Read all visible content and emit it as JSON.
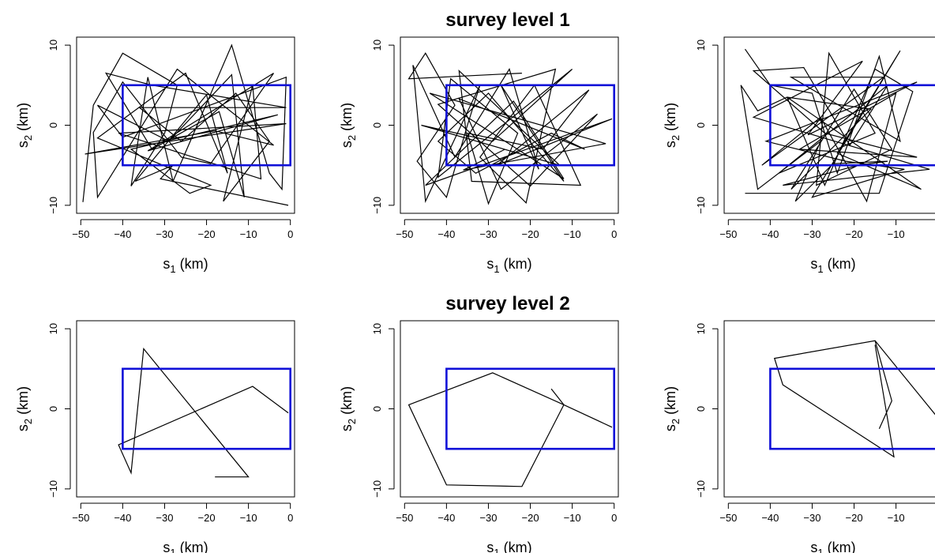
{
  "figure": {
    "titles": [
      "survey level 1",
      "survey level 2"
    ]
  },
  "axes_text": {
    "xlabel_main": "s",
    "xlabel_sub": "1",
    "xlabel_unit": " (km)",
    "ylabel_main": "s",
    "ylabel_sub": "2",
    "ylabel_unit": " (km)",
    "xticks": [
      "-50",
      "-40",
      "-30",
      "-20",
      "-10",
      "0"
    ],
    "yticks": [
      "-10",
      "0",
      "10"
    ]
  },
  "colors": {
    "region": "#1010d8",
    "path": "#000000"
  },
  "chart_data": [
    {
      "type": "line",
      "panel": "level1-col1",
      "xlim": [
        -51,
        1
      ],
      "ylim": [
        -11,
        11
      ],
      "grid": false,
      "region": {
        "x": [
          -40,
          0
        ],
        "y": [
          -5,
          5
        ]
      },
      "series": [
        {
          "values": [
            [
              -49.5,
              -9.6
            ],
            [
              -47,
              2.5
            ],
            [
              -40,
              9
            ],
            [
              -27,
              5
            ],
            [
              -30,
              -1
            ],
            [
              -38,
              -7.6
            ],
            [
              -34,
              6
            ],
            [
              -28,
              -7
            ],
            [
              -14,
              10
            ],
            [
              -5,
              -6
            ],
            [
              -2,
              -8
            ],
            [
              -1,
              6
            ],
            [
              -40,
              -1.5
            ],
            [
              -46,
              2.5
            ],
            [
              -29,
              -2
            ],
            [
              -14,
              6.3
            ],
            [
              -11,
              -9
            ],
            [
              -17,
              1.7
            ],
            [
              -33,
              -3
            ],
            [
              -44,
              6.5
            ],
            [
              -33,
              5
            ],
            [
              -1,
              2.2
            ],
            [
              -36,
              2.2
            ],
            [
              -26,
              -2
            ],
            [
              -13,
              4
            ],
            [
              -5,
              -2
            ],
            [
              -16,
              -9.5
            ],
            [
              -9,
              5
            ],
            [
              -7,
              -6.7
            ],
            [
              -41,
              -1
            ],
            [
              -1,
              0.2
            ],
            [
              -49,
              -3.6
            ],
            [
              -18,
              -0.7
            ],
            [
              -4,
              -2.5
            ],
            [
              -27,
              7
            ],
            [
              -46,
              -9
            ],
            [
              -47,
              -0.9
            ],
            [
              -40,
              5.4
            ],
            [
              -26,
              -4
            ],
            [
              -19,
              -4.8
            ],
            [
              -4,
              6.5
            ],
            [
              -34,
              -3.2
            ],
            [
              -3,
              1.3
            ],
            [
              -38,
              -3
            ],
            [
              -24,
              -8.5
            ],
            [
              -19,
              -7.5
            ],
            [
              -46,
              -1.6
            ],
            [
              -25,
              6.5
            ],
            [
              -15,
              -6
            ],
            [
              -20,
              3.8
            ],
            [
              -37,
              -7
            ],
            [
              -28,
              -5
            ],
            [
              -31,
              -6.7
            ],
            [
              -0.5,
              -10
            ]
          ]
        }
      ]
    },
    {
      "type": "line",
      "panel": "level1-col2",
      "xlim": [
        -51,
        1
      ],
      "ylim": [
        -11,
        11
      ],
      "grid": false,
      "region": {
        "x": [
          -40,
          0
        ],
        "y": [
          -5,
          5
        ]
      },
      "series": [
        {
          "values": [
            [
              -22,
              6.5
            ],
            [
              -49,
              5.8
            ],
            [
              -45,
              9
            ],
            [
              -38,
              2.5
            ],
            [
              -47,
              -4.5
            ],
            [
              -40,
              -9
            ],
            [
              -35,
              0
            ],
            [
              -32,
              5
            ],
            [
              -45,
              -9.5
            ],
            [
              -48,
              7.5
            ],
            [
              -38,
              -4
            ],
            [
              -25,
              7
            ],
            [
              -18,
              -5.5
            ],
            [
              -27,
              5
            ],
            [
              -12,
              -7
            ],
            [
              -30,
              4
            ],
            [
              -42,
              -2
            ],
            [
              -33,
              -6
            ],
            [
              -15,
              -1
            ],
            [
              -7,
              -3
            ],
            [
              -37,
              3.3
            ],
            [
              -27,
              -8
            ],
            [
              -4,
              1.4
            ],
            [
              -20,
              -7.6
            ],
            [
              -42,
              2.6
            ],
            [
              -14,
              7
            ],
            [
              -21,
              -9.7
            ],
            [
              -32,
              -4
            ],
            [
              -19,
              5
            ],
            [
              -8,
              -7.5
            ],
            [
              -34,
              -7
            ],
            [
              -37,
              6.8
            ],
            [
              -13,
              -5
            ],
            [
              -46,
              0
            ],
            [
              -29,
              -2
            ],
            [
              -10,
              7
            ],
            [
              -42,
              -6.5
            ],
            [
              -39,
              5.8
            ],
            [
              -23,
              -1
            ],
            [
              -30,
              -9.8
            ],
            [
              -35,
              -1
            ],
            [
              -17,
              -3
            ],
            [
              -6,
              4.4
            ],
            [
              -28,
              -5
            ],
            [
              -0.5,
              0.8
            ],
            [
              -45,
              -7.5
            ],
            [
              -24,
              3
            ],
            [
              -12,
              -6.7
            ],
            [
              -44,
              4
            ],
            [
              -2,
              -2.3
            ],
            [
              -36,
              -5.6
            ],
            [
              -26,
              -3
            ]
          ]
        }
      ]
    },
    {
      "type": "line",
      "panel": "level1-col3",
      "xlim": [
        -51,
        1
      ],
      "ylim": [
        -11,
        11
      ],
      "grid": false,
      "region": {
        "x": [
          -40,
          0
        ],
        "y": [
          -5,
          5
        ]
      },
      "series": [
        {
          "values": [
            [
              -46,
              9.5
            ],
            [
              -40,
              5
            ],
            [
              -30,
              4
            ],
            [
              -24,
              -6
            ],
            [
              -14,
              8.6
            ],
            [
              -9,
              -2
            ],
            [
              -35,
              6
            ],
            [
              -13,
              6
            ],
            [
              -42,
              -5
            ],
            [
              -28,
              1
            ],
            [
              -17,
              -9.5
            ],
            [
              -10,
              4
            ],
            [
              -33,
              -3
            ],
            [
              -5,
              -4
            ],
            [
              -27,
              -1
            ],
            [
              -44,
              6.8
            ],
            [
              -32,
              7.2
            ],
            [
              -21,
              -2.5
            ],
            [
              -12,
              5
            ],
            [
              -38,
              -6
            ],
            [
              -15,
              -1
            ],
            [
              -26,
              9
            ],
            [
              -29,
              -7.5
            ],
            [
              -11,
              -3
            ],
            [
              -20,
              4.5
            ],
            [
              -35,
              -8
            ],
            [
              -16,
              2
            ],
            [
              -36,
              3.5
            ],
            [
              -4,
              -8
            ],
            [
              -24,
              -3.5
            ],
            [
              -9,
              9.3
            ],
            [
              -30,
              -9
            ],
            [
              -8,
              -5.5
            ],
            [
              -22,
              -4.5
            ],
            [
              -41,
              -2
            ],
            [
              -5,
              5.4
            ],
            [
              -31,
              -1.2
            ],
            [
              -18,
              8
            ],
            [
              -44,
              1
            ],
            [
              -2,
              -5.5
            ],
            [
              -37,
              -7.5
            ],
            [
              -19,
              -5
            ],
            [
              -12,
              -4.5
            ],
            [
              -25,
              -4.8
            ],
            [
              -34,
              -9.5
            ],
            [
              -28,
              -2
            ],
            [
              -43,
              -8
            ],
            [
              -47,
              5
            ],
            [
              -43,
              1.8
            ],
            [
              -36,
              3.5
            ],
            [
              -27,
              -7.5
            ],
            [
              -15,
              7
            ],
            [
              -6,
              4.2
            ],
            [
              -14,
              -8.5
            ],
            [
              -46,
              -8.5
            ]
          ]
        }
      ]
    },
    {
      "type": "line",
      "panel": "level2-col1",
      "xlim": [
        -51,
        1
      ],
      "ylim": [
        -11,
        11
      ],
      "grid": false,
      "region": {
        "x": [
          -40,
          0
        ],
        "y": [
          -5,
          5
        ]
      },
      "series": [
        {
          "values": [
            [
              -18,
              -8.5
            ],
            [
              -10,
              -8.5
            ],
            [
              -35,
              7.5
            ],
            [
              -38,
              -8
            ],
            [
              -41,
              -4.5
            ],
            [
              -9,
              2.8
            ],
            [
              -0.5,
              -0.5
            ]
          ]
        }
      ]
    },
    {
      "type": "line",
      "panel": "level2-col2",
      "xlim": [
        -51,
        1
      ],
      "ylim": [
        -11,
        11
      ],
      "grid": false,
      "region": {
        "x": [
          -40,
          0
        ],
        "y": [
          -5,
          5
        ]
      },
      "series": [
        {
          "values": [
            [
              -15,
              2.5
            ],
            [
              -12,
              0.5
            ],
            [
              -29,
              4.5
            ],
            [
              -49,
              0.5
            ],
            [
              -40,
              -9.5
            ],
            [
              -22,
              -9.7
            ],
            [
              -12,
              0.5
            ],
            [
              -0.5,
              -2.3
            ]
          ]
        }
      ]
    },
    {
      "type": "line",
      "panel": "level2-col3",
      "xlim": [
        -51,
        1
      ],
      "ylim": [
        -11,
        11
      ],
      "grid": false,
      "region": {
        "x": [
          -40,
          0
        ],
        "y": [
          -5,
          5
        ]
      },
      "series": [
        {
          "values": [
            [
              -14,
              -2.5
            ],
            [
              -11,
              1
            ],
            [
              -15,
              8.5
            ],
            [
              -0.5,
              -0.8
            ],
            [
              -15,
              8.5
            ],
            [
              -39,
              6.3
            ],
            [
              -37,
              3
            ],
            [
              -10.5,
              -6
            ],
            [
              -15,
              8
            ]
          ]
        }
      ]
    }
  ]
}
